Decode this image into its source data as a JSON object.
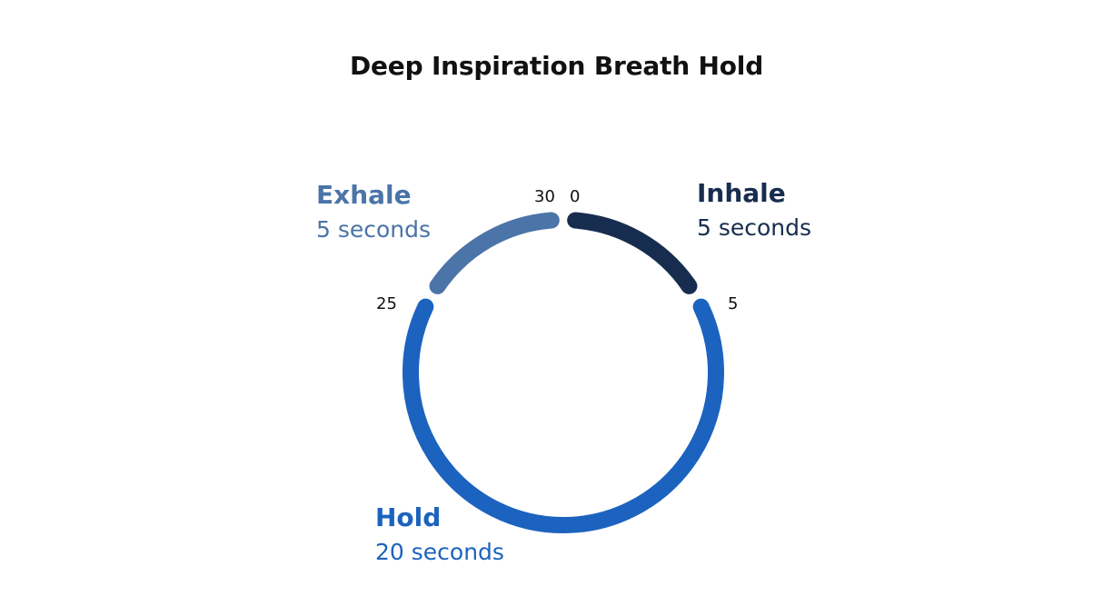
{
  "title": "Deep Inspiration Breath Hold",
  "cycle": {
    "total": 30,
    "ticks": [
      "0",
      "5",
      "25",
      "30"
    ],
    "phases": [
      {
        "name": "Inhale",
        "duration": "5 seconds",
        "start": 0,
        "end": 5,
        "color": "#172d4f"
      },
      {
        "name": "Hold",
        "duration": "20 seconds",
        "start": 5,
        "end": 25,
        "color": "#1c63bf"
      },
      {
        "name": "Exhale",
        "duration": "5 seconds",
        "start": 25,
        "end": 30,
        "color": "#4b74a8"
      }
    ]
  }
}
